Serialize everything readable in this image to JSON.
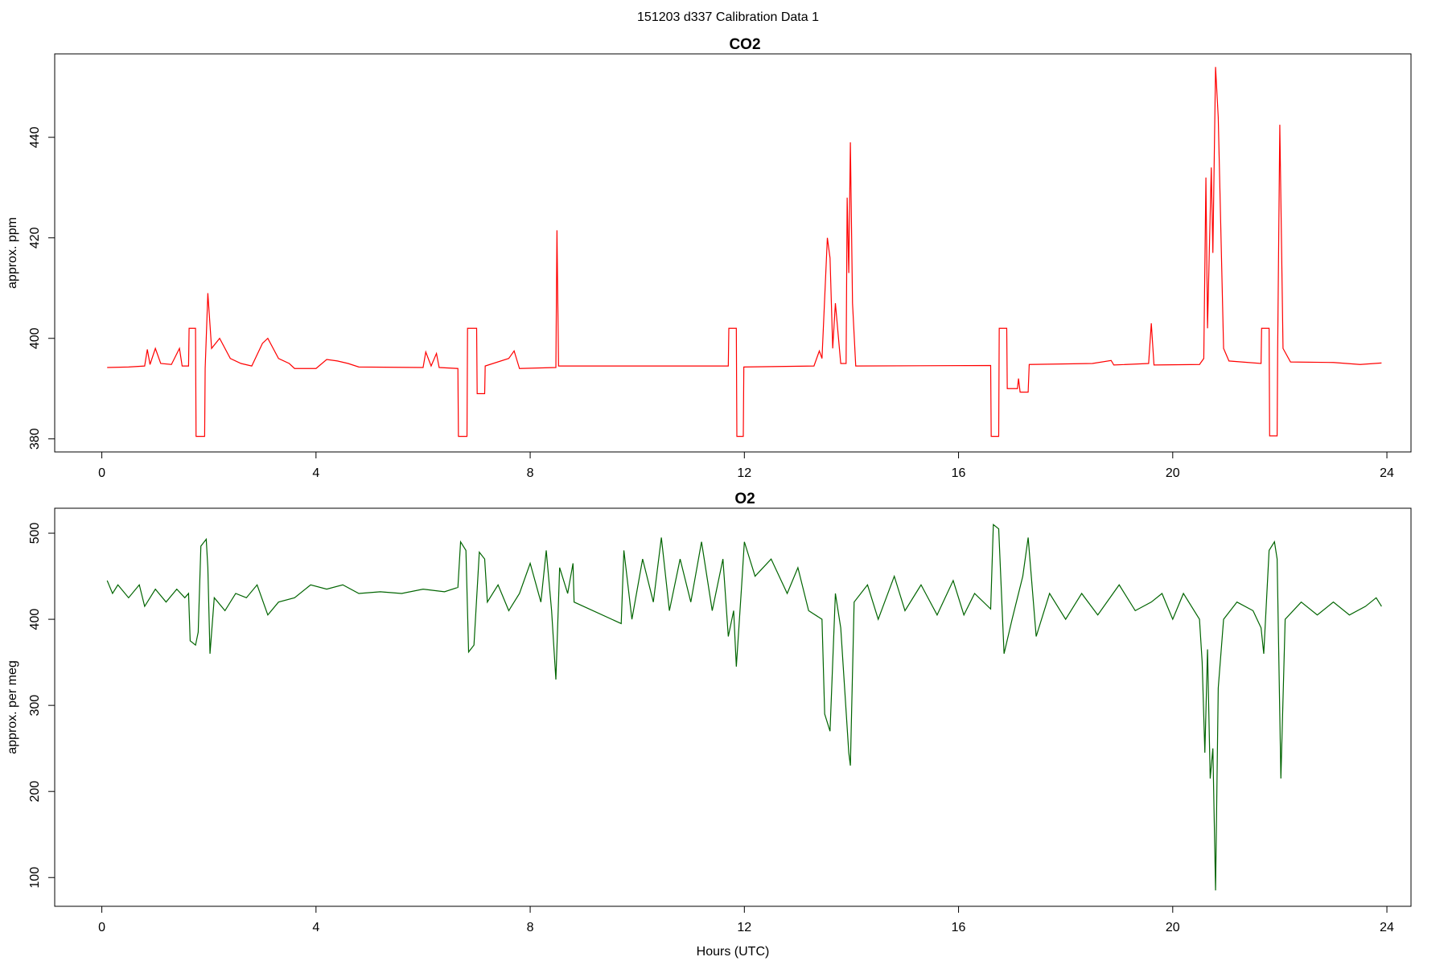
{
  "title": "151203   d337   Calibration Data 1",
  "chart_data": [
    {
      "type": "line",
      "title": "CO2",
      "ylabel": "approx. ppm",
      "xlim": [
        -0.88,
        24.45
      ],
      "ylim": [
        377.4,
        456.6
      ],
      "xticks": [
        0,
        4,
        8,
        12,
        16,
        20,
        24
      ],
      "yticks": [
        380,
        400,
        420,
        440
      ],
      "x": [
        0.1,
        0.5,
        0.8,
        0.85,
        0.9,
        1.0,
        1.1,
        1.3,
        1.45,
        1.5,
        1.62,
        1.63,
        1.75,
        1.76,
        1.92,
        1.93,
        1.98,
        2.05,
        2.2,
        2.4,
        2.6,
        2.8,
        3.0,
        3.1,
        3.3,
        3.5,
        3.6,
        4.0,
        4.2,
        4.4,
        4.6,
        4.8,
        6.0,
        6.05,
        6.15,
        6.25,
        6.3,
        6.65,
        6.66,
        6.82,
        6.83,
        7.0,
        7.01,
        7.15,
        7.16,
        7.6,
        7.7,
        7.8,
        8.48,
        8.5,
        8.53,
        11.7,
        11.71,
        11.85,
        11.86,
        11.98,
        11.99,
        13.3,
        13.4,
        13.45,
        13.55,
        13.6,
        13.65,
        13.7,
        13.8,
        13.9,
        13.92,
        13.95,
        13.98,
        14.02,
        14.08,
        16.6,
        16.61,
        16.75,
        16.76,
        16.9,
        16.91,
        17.1,
        17.12,
        17.15,
        17.3,
        17.32,
        18.5,
        18.85,
        18.9,
        19.55,
        19.6,
        19.65,
        20.5,
        20.58,
        20.62,
        20.65,
        20.72,
        20.75,
        20.8,
        20.85,
        20.95,
        21.05,
        21.65,
        21.66,
        21.8,
        21.81,
        21.95,
        21.96,
        22.0,
        22.06,
        22.2,
        23.0,
        23.5,
        23.9
      ],
      "series": [
        {
          "color": "#ff0000",
          "values": [
            394.2,
            394.3,
            394.5,
            397.8,
            394.8,
            398,
            395,
            394.8,
            398,
            394.5,
            394.5,
            402,
            402,
            380.5,
            380.5,
            394,
            409,
            398,
            400,
            396,
            395,
            394.5,
            399,
            400,
            396,
            395,
            394,
            394,
            395.8,
            395.5,
            395,
            394.3,
            394.2,
            397.3,
            394.5,
            397,
            394.2,
            394,
            380.5,
            380.5,
            402,
            402,
            389,
            389,
            394.5,
            396,
            397.5,
            394,
            394.2,
            421.5,
            394.5,
            394.5,
            402,
            402,
            380.5,
            380.5,
            394.3,
            394.5,
            397.5,
            396,
            420,
            416,
            398,
            407,
            395,
            395,
            428,
            413,
            439,
            407,
            394.5,
            394.6,
            380.5,
            380.5,
            402,
            402,
            390,
            390,
            392,
            389.3,
            389.3,
            394.8,
            395,
            395.6,
            394.7,
            395,
            403,
            394.7,
            394.8,
            396,
            432,
            402,
            434,
            417,
            454,
            444,
            398,
            395.5,
            395,
            402,
            402,
            380.6,
            380.6,
            398,
            442.5,
            398,
            395.3,
            395.2,
            394.8,
            395.1
          ]
        }
      ]
    },
    {
      "type": "line",
      "title": "O2",
      "ylabel": "approx. per meg",
      "xlabel": "Hours (UTC)",
      "xlim": [
        -0.88,
        24.45
      ],
      "ylim": [
        66.6,
        529
      ],
      "xticks": [
        0,
        4,
        8,
        12,
        16,
        20,
        24
      ],
      "yticks": [
        100,
        200,
        300,
        400,
        500
      ],
      "x": [
        0.1,
        0.2,
        0.3,
        0.5,
        0.7,
        0.8,
        1.0,
        1.2,
        1.4,
        1.55,
        1.62,
        1.65,
        1.75,
        1.8,
        1.85,
        1.95,
        1.98,
        2.02,
        2.1,
        2.3,
        2.5,
        2.7,
        2.9,
        3.1,
        3.3,
        3.6,
        3.9,
        4.2,
        4.5,
        4.8,
        5.2,
        5.6,
        6.0,
        6.4,
        6.65,
        6.7,
        6.8,
        6.85,
        6.95,
        7.05,
        7.15,
        7.2,
        7.4,
        7.6,
        7.8,
        8.0,
        8.2,
        8.3,
        8.4,
        8.48,
        8.55,
        8.7,
        8.8,
        8.82,
        9.7,
        9.75,
        9.9,
        10.1,
        10.3,
        10.45,
        10.6,
        10.8,
        11.0,
        11.2,
        11.4,
        11.6,
        11.7,
        11.8,
        11.85,
        11.95,
        12.0,
        12.2,
        12.5,
        12.8,
        13.0,
        13.2,
        13.45,
        13.5,
        13.6,
        13.7,
        13.8,
        13.95,
        13.98,
        14.05,
        14.3,
        14.5,
        14.8,
        15.0,
        15.3,
        15.6,
        15.9,
        16.1,
        16.3,
        16.6,
        16.65,
        16.75,
        16.85,
        17.0,
        17.2,
        17.3,
        17.45,
        17.7,
        18.0,
        18.3,
        18.6,
        19.0,
        19.3,
        19.6,
        19.8,
        20.0,
        20.2,
        20.5,
        20.55,
        20.6,
        20.65,
        20.7,
        20.75,
        20.8,
        20.85,
        20.95,
        21.2,
        21.5,
        21.65,
        21.7,
        21.8,
        21.9,
        21.95,
        22.02,
        22.1,
        22.4,
        22.7,
        23.0,
        23.3,
        23.6,
        23.8,
        23.9
      ],
      "series": [
        {
          "color": "#006400",
          "values": [
            445,
            430,
            440,
            425,
            440,
            415,
            435,
            420,
            435,
            425,
            430,
            375,
            370,
            385,
            485,
            493,
            460,
            360,
            425,
            410,
            430,
            425,
            440,
            405,
            420,
            425,
            440,
            435,
            440,
            430,
            432,
            430,
            435,
            432,
            437,
            490,
            480,
            362,
            370,
            478,
            470,
            420,
            440,
            410,
            430,
            465,
            420,
            480,
            410,
            330,
            460,
            430,
            465,
            420,
            395,
            480,
            400,
            470,
            420,
            495,
            410,
            470,
            420,
            490,
            410,
            470,
            380,
            410,
            345,
            440,
            490,
            450,
            470,
            430,
            460,
            410,
            400,
            290,
            270,
            430,
            390,
            245,
            230,
            420,
            440,
            400,
            450,
            410,
            440,
            405,
            445,
            405,
            430,
            412,
            510,
            505,
            360,
            400,
            450,
            495,
            380,
            430,
            400,
            430,
            405,
            440,
            410,
            420,
            430,
            400,
            430,
            400,
            350,
            245,
            365,
            215,
            250,
            85,
            320,
            400,
            420,
            410,
            390,
            360,
            480,
            490,
            470,
            215,
            400,
            420,
            405,
            420,
            405,
            415,
            425,
            415
          ]
        }
      ]
    }
  ]
}
